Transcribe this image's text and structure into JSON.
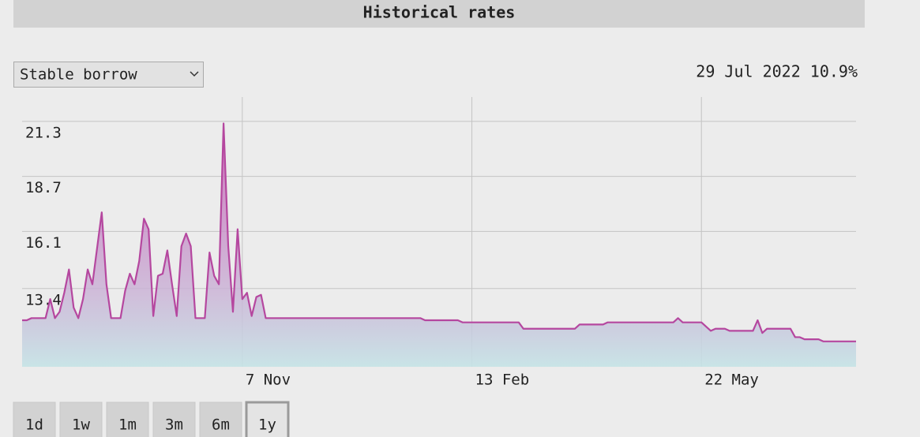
{
  "header": {
    "title": "Historical rates"
  },
  "select": {
    "label": "Stable borrow"
  },
  "readout": "29 Jul 2022 10.9%",
  "range_buttons": {
    "items": [
      "1d",
      "1w",
      "1m",
      "3m",
      "6m",
      "1y"
    ],
    "active": "1y"
  },
  "chart_data": {
    "type": "area",
    "color": "#b5479f",
    "categories": [
      null,
      null,
      null,
      null,
      null,
      null,
      null,
      null,
      null,
      null,
      null,
      null,
      null,
      null,
      null,
      null,
      null,
      null,
      null,
      null,
      null,
      null,
      null,
      null,
      null,
      null,
      null,
      null,
      null,
      null,
      null,
      null,
      null,
      null,
      null,
      null,
      null,
      null,
      null,
      null,
      null,
      null,
      null,
      null,
      null,
      null,
      null,
      "7 Nov",
      null,
      null,
      null,
      null,
      null,
      null,
      null,
      null,
      null,
      null,
      null,
      null,
      null,
      null,
      null,
      null,
      null,
      null,
      null,
      null,
      null,
      null,
      null,
      null,
      null,
      null,
      null,
      null,
      null,
      null,
      null,
      null,
      null,
      null,
      null,
      null,
      null,
      null,
      null,
      null,
      null,
      null,
      null,
      null,
      null,
      null,
      null,
      null,
      "13 Feb",
      null,
      null,
      null,
      null,
      null,
      null,
      null,
      null,
      null,
      null,
      null,
      null,
      null,
      null,
      null,
      null,
      null,
      null,
      null,
      null,
      null,
      null,
      null,
      null,
      null,
      null,
      null,
      null,
      null,
      null,
      null,
      null,
      null,
      null,
      null,
      null,
      null,
      null,
      null,
      null,
      null,
      null,
      null,
      null,
      null,
      null,
      null,
      null,
      "22 May",
      null,
      null,
      null,
      null,
      null,
      null,
      null,
      null,
      null,
      null,
      null,
      null,
      null,
      null,
      null,
      null,
      null,
      null,
      null,
      null,
      null,
      null,
      null,
      null,
      null,
      null,
      null,
      null,
      null,
      null,
      null,
      null,
      null
    ],
    "values": [
      11.9,
      11.9,
      12.0,
      12.0,
      12.0,
      12.0,
      12.9,
      12.0,
      12.3,
      13.2,
      14.3,
      12.5,
      12.0,
      12.9,
      14.3,
      13.6,
      15.3,
      17.0,
      13.6,
      12.0,
      12.0,
      12.0,
      13.3,
      14.1,
      13.6,
      14.7,
      16.7,
      16.2,
      12.1,
      14.0,
      14.1,
      15.2,
      13.6,
      12.1,
      15.4,
      16.0,
      15.4,
      12.0,
      12.0,
      12.0,
      15.1,
      14.0,
      13.6,
      21.2,
      15.4,
      12.3,
      16.2,
      12.9,
      13.2,
      12.1,
      13.0,
      13.1,
      12.0,
      12.0,
      12.0,
      12.0,
      12.0,
      12.0,
      12.0,
      12.0,
      12.0,
      12.0,
      12.0,
      12.0,
      12.0,
      12.0,
      12.0,
      12.0,
      12.0,
      12.0,
      12.0,
      12.0,
      12.0,
      12.0,
      12.0,
      12.0,
      12.0,
      12.0,
      12.0,
      12.0,
      12.0,
      12.0,
      12.0,
      12.0,
      12.0,
      12.0,
      11.9,
      11.9,
      11.9,
      11.9,
      11.9,
      11.9,
      11.9,
      11.9,
      11.8,
      11.8,
      11.8,
      11.8,
      11.8,
      11.8,
      11.8,
      11.8,
      11.8,
      11.8,
      11.8,
      11.8,
      11.8,
      11.5,
      11.5,
      11.5,
      11.5,
      11.5,
      11.5,
      11.5,
      11.5,
      11.5,
      11.5,
      11.5,
      11.5,
      11.7,
      11.7,
      11.7,
      11.7,
      11.7,
      11.7,
      11.8,
      11.8,
      11.8,
      11.8,
      11.8,
      11.8,
      11.8,
      11.8,
      11.8,
      11.8,
      11.8,
      11.8,
      11.8,
      11.8,
      11.8,
      12.0,
      11.8,
      11.8,
      11.8,
      11.8,
      11.8,
      11.6,
      11.4,
      11.5,
      11.5,
      11.5,
      11.4,
      11.4,
      11.4,
      11.4,
      11.4,
      11.4,
      11.9,
      11.3,
      11.5,
      11.5,
      11.5,
      11.5,
      11.5,
      11.5,
      11.1,
      11.1,
      11.0,
      11.0,
      11.0,
      11.0,
      10.9,
      10.9,
      10.9,
      10.9,
      10.9,
      10.9,
      10.9,
      10.9
    ],
    "ylim": [
      9.7,
      22.45
    ],
    "yticks": [
      13.4,
      16.1,
      18.7,
      21.3
    ],
    "grid": true
  }
}
